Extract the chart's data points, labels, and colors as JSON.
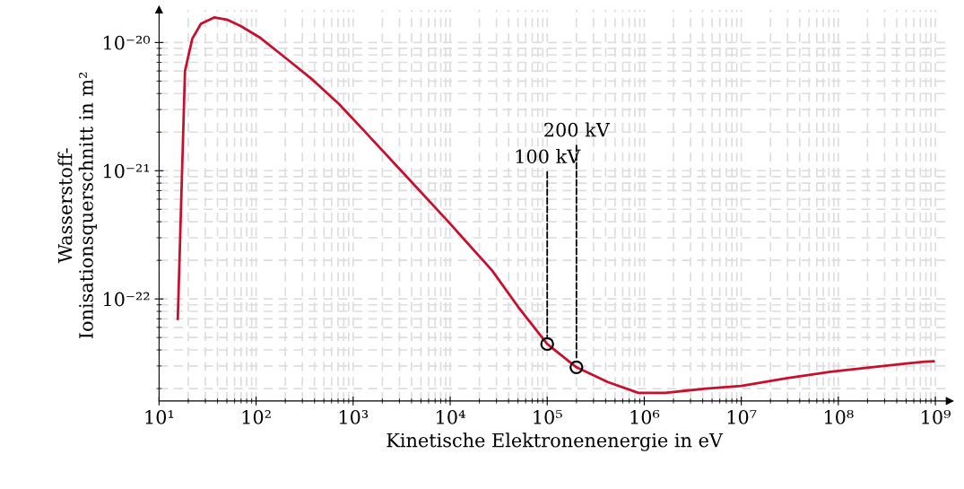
{
  "chart_data": {
    "type": "line",
    "xlabel": "Kinetische Elektronenenergie in eV",
    "ylabel": "Wasserstoff-\nIonisationsquerschnitt in m²",
    "log": "xy",
    "grid": true,
    "legend": false,
    "xlim": [
      10,
      1400000000.0
    ],
    "ylim": [
      1.6e-23,
      1.8e-20
    ],
    "xticks": [
      {
        "value": 10,
        "label": "10¹"
      },
      {
        "value": 100,
        "label": "10²"
      },
      {
        "value": 1000,
        "label": "10³"
      },
      {
        "value": 10000,
        "label": "10⁴"
      },
      {
        "value": 100000,
        "label": "10⁵"
      },
      {
        "value": 1000000,
        "label": "10⁶"
      },
      {
        "value": 10000000,
        "label": "10⁷"
      },
      {
        "value": 100000000,
        "label": "10⁸"
      },
      {
        "value": 1000000000,
        "label": "10⁹"
      }
    ],
    "yticks": [
      {
        "value": 1e-22,
        "label": "10⁻²²"
      },
      {
        "value": 1e-21,
        "label": "10⁻²¹"
      },
      {
        "value": 1e-20,
        "label": "10⁻²⁰"
      }
    ],
    "series": [
      {
        "color": "#c8102e",
        "marker": "none",
        "line_style": "solid",
        "x": [
          15.6,
          18.5,
          22,
          27,
          37,
          51,
          70,
          108,
          205,
          385,
          720,
          1380,
          3200,
          9300,
          27000,
          50000,
          100000,
          200000,
          420000,
          870000,
          1650000,
          4300000,
          10000000,
          29000000,
          83000000,
          240000000,
          770000000,
          960000000
        ],
        "values": [
          7e-23,
          6e-21,
          1.07e-20,
          1.4e-20,
          1.57e-20,
          1.5e-20,
          1.34e-20,
          1.1e-20,
          7.5e-21,
          5.1e-21,
          3.3e-21,
          1.95e-21,
          9.8e-22,
          4.1e-22,
          1.67e-22,
          8.7e-23,
          4.45e-23,
          2.93e-23,
          2.25e-23,
          1.85e-23,
          1.85e-23,
          2e-23,
          2.1e-23,
          2.4e-23,
          2.7e-23,
          2.95e-23,
          3.24e-23,
          3.26e-23
        ]
      },
      {
        "type": "scatter",
        "color": "#000000",
        "marker": "circle",
        "x": [
          100000,
          200000
        ],
        "values": [
          4.45e-23,
          2.93e-23
        ]
      }
    ],
    "annotations": [
      {
        "text": "100 kV",
        "x": 100000,
        "y": 4.45e-23
      },
      {
        "text": "200 kV",
        "x": 200000,
        "y": 2.93e-23
      }
    ]
  }
}
